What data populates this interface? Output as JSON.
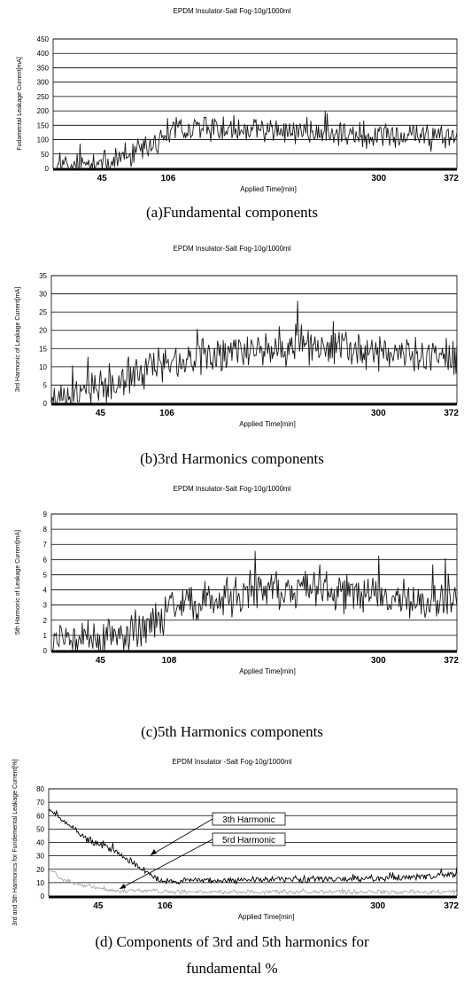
{
  "charts": [
    {
      "title": "EPDM Insulator-Salt Fog-10g/1000ml",
      "caption": "(a)Fundamental components",
      "ylabel": "Fudamental Leakage Current[mA]",
      "xlabel": "Applied Time[min]",
      "yticks": [
        "450",
        "400",
        "350",
        "300",
        "250",
        "200",
        "150",
        "100",
        "50",
        "0"
      ],
      "xticks": [
        "45",
        "106",
        "300",
        "372"
      ],
      "chart_data": {
        "type": "line",
        "title": "EPDM Insulator-Salt Fog-10g/1000ml",
        "xlabel": "Applied Time[min]",
        "ylabel": "Fudamental Leakage Current[mA]",
        "xlim": [
          0,
          372
        ],
        "ylim": [
          0,
          450
        ],
        "grid": true,
        "profile": [
          [
            0,
            5
          ],
          [
            20,
            8
          ],
          [
            45,
            12
          ],
          [
            60,
            30
          ],
          [
            85,
            60
          ],
          [
            106,
            130
          ],
          [
            140,
            140
          ],
          [
            200,
            130
          ],
          [
            300,
            115
          ],
          [
            372,
            110
          ]
        ],
        "noise": 55
      }
    },
    {
      "title": "EPDM Insulator-Salt Fog-10g/1000ml",
      "caption": "(b)3rd Harmonics components",
      "ylabel": "3rd Harmonic of Leakage Current[mA]",
      "xlabel": "Applied Time[min]",
      "yticks": [
        "35",
        "30",
        "25",
        "20",
        "15",
        "10",
        "5",
        "0"
      ],
      "xticks": [
        "45",
        "106",
        "300",
        "372"
      ],
      "chart_data": {
        "type": "line",
        "title": "EPDM Insulator-Salt Fog-10g/1000ml",
        "xlabel": "Applied Time[min]",
        "ylabel": "3rd Harmonic of Leakage Current[mA]",
        "xlim": [
          0,
          372
        ],
        "ylim": [
          0,
          35
        ],
        "grid": true,
        "profile": [
          [
            0,
            1.5
          ],
          [
            15,
            2
          ],
          [
            45,
            4
          ],
          [
            70,
            8
          ],
          [
            106,
            11
          ],
          [
            160,
            14
          ],
          [
            230,
            15
          ],
          [
            300,
            14
          ],
          [
            372,
            13
          ]
        ],
        "noise": 6
      }
    },
    {
      "title": "EPDM Insulator-Salt Fog-10g/1000ml",
      "caption": "(c)5th Harmonics components",
      "ylabel": "5th Harmonic of Leakage Current[mA]",
      "xlabel": "Applied Time[min]",
      "yticks": [
        "9",
        "8",
        "7",
        "6",
        "5",
        "4",
        "3",
        "2",
        "1",
        "0"
      ],
      "xticks": [
        "45",
        "108",
        "300",
        "372"
      ],
      "chart_data": {
        "type": "line",
        "title": "EPDM Insulator-Salt Fog-10g/1000ml",
        "xlabel": "Applied Time[min]",
        "ylabel": "5th Harmonic of Leakage Current[mA]",
        "xlim": [
          0,
          372
        ],
        "ylim": [
          0,
          9
        ],
        "grid": true,
        "profile": [
          [
            0,
            0.6
          ],
          [
            30,
            0.7
          ],
          [
            60,
            0.9
          ],
          [
            90,
            1.6
          ],
          [
            108,
            2.8
          ],
          [
            170,
            3.8
          ],
          [
            230,
            4.0
          ],
          [
            300,
            3.6
          ],
          [
            372,
            3.2
          ]
        ],
        "noise": 1.6
      }
    },
    {
      "title": "EPDM Insulator -Salt Fog-10g/1000ml",
      "caption": "(d) Components of 3rd and 5th harmonics for",
      "caption_line2": "fundamental %",
      "ylabel": "3rd and 5th Harmonics for Fundemental Leakage Current[%]",
      "xlabel": "Applied Time[min]",
      "yticks": [
        "80",
        "70",
        "60",
        "50",
        "40",
        "30",
        "20",
        "10",
        "0"
      ],
      "xticks": [
        "45",
        "106",
        "300",
        "372"
      ],
      "annotations": [
        "3th Harmonic",
        "5rd Harmonic"
      ],
      "chart_data": {
        "type": "line",
        "title": "EPDM Insulator -Salt Fog-10g/1000ml",
        "xlabel": "Applied Time[min]",
        "ylabel": "3rd and 5th Harmonics for Fundemental Leakage Current[%]",
        "xlim": [
          0,
          372
        ],
        "ylim": [
          0,
          80
        ],
        "grid": true,
        "series": [
          {
            "profile": [
              [
                0,
                65
              ],
              [
                15,
                56
              ],
              [
                35,
                42
              ],
              [
                55,
                36
              ],
              [
                75,
                26
              ],
              [
                95,
                14
              ],
              [
                106,
                11
              ],
              [
                200,
                12
              ],
              [
                300,
                13
              ],
              [
                372,
                16
              ]
            ],
            "noise": 3,
            "color": "#000000"
          },
          {
            "profile": [
              [
                0,
                22
              ],
              [
                10,
                14
              ],
              [
                25,
                9
              ],
              [
                60,
                4
              ],
              [
                90,
                4
              ],
              [
                106,
                3
              ],
              [
                200,
                3
              ],
              [
                300,
                3
              ],
              [
                372,
                3
              ]
            ],
            "noise": 2,
            "color": "#a8a8a8"
          }
        ]
      }
    }
  ],
  "colors": {
    "line": "#1a1a1a",
    "secondary_line": "#a8a8a8",
    "grid": "#000000"
  }
}
